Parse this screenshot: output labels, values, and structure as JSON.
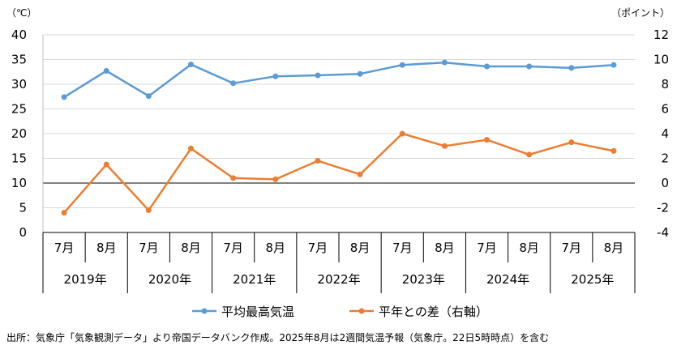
{
  "chart_data": {
    "type": "line",
    "left_unit": "（℃）",
    "right_unit": "（ポイント）",
    "y_left": {
      "min": 0,
      "max": 40,
      "step": 5,
      "ticks": [
        "0",
        "5",
        "10",
        "15",
        "20",
        "25",
        "30",
        "35",
        "40"
      ]
    },
    "y_right": {
      "min": -4,
      "max": 12,
      "step": 2,
      "ticks": [
        "-4",
        "-2",
        "0",
        "2",
        "4",
        "6",
        "8",
        "10",
        "12"
      ]
    },
    "grid": true,
    "categories": [
      "7月",
      "8月",
      "7月",
      "8月",
      "7月",
      "8月",
      "7月",
      "8月",
      "7月",
      "8月",
      "7月",
      "8月",
      "7月",
      "8月"
    ],
    "years": [
      "2019年",
      "2020年",
      "2021年",
      "2022年",
      "2023年",
      "2024年",
      "2025年"
    ],
    "series": [
      {
        "name": "平均最高気温",
        "axis": "left",
        "color": "#5b9bd5",
        "values": [
          27.4,
          32.7,
          27.6,
          34.0,
          30.2,
          31.6,
          31.8,
          32.1,
          33.9,
          34.4,
          33.6,
          33.6,
          33.3,
          33.9
        ]
      },
      {
        "name": "平年との差（右軸）",
        "axis": "right",
        "color": "#ed7d31",
        "values": [
          -2.4,
          1.5,
          -2.2,
          2.8,
          0.4,
          0.3,
          1.8,
          0.7,
          4.0,
          3.0,
          3.5,
          2.3,
          3.3,
          2.6
        ]
      }
    ],
    "legend_position": "bottom"
  },
  "source_note": "出所：気象庁「気象観測データ」より帝国データバンク作成。2025年8月は2週間気温予報（気象庁。22日5時時点）を含む"
}
